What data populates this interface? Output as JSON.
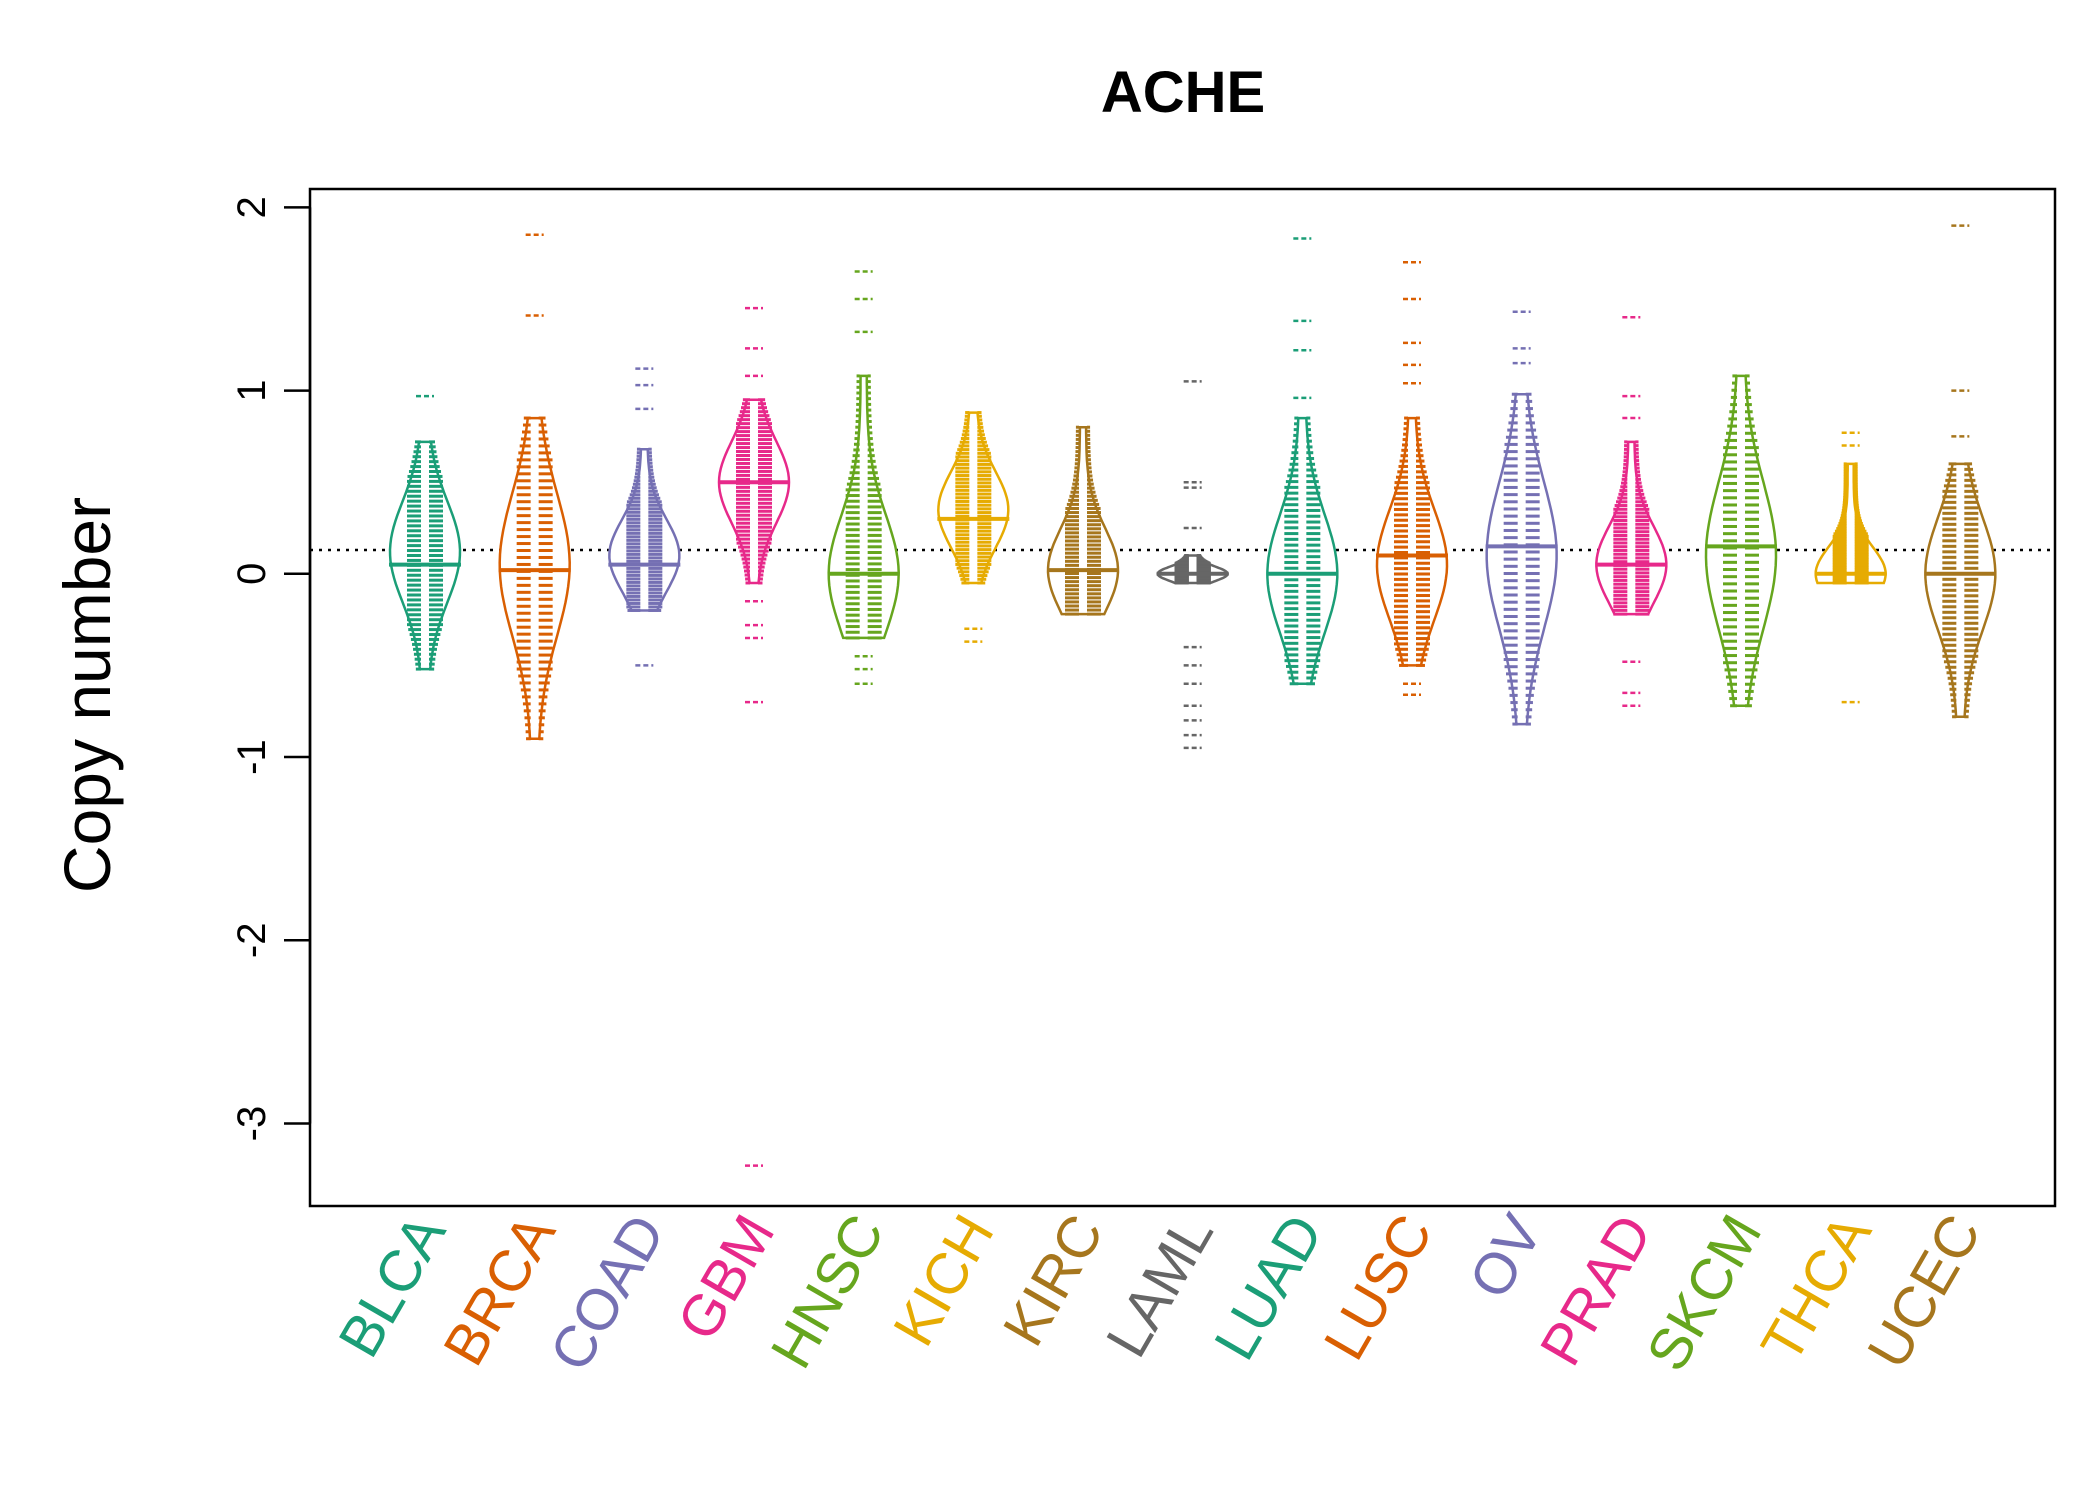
{
  "chart_data": {
    "type": "beanplot",
    "title": "ACHE",
    "ylabel": "Copy number",
    "xlabel": "",
    "ylim": [
      -3.45,
      2.1
    ],
    "y_ticks": [
      2,
      1,
      0,
      -1,
      -2,
      -3
    ],
    "y_tick_labels": [
      "2",
      "1",
      "0",
      "-1",
      "-2",
      "-3"
    ],
    "reference_line": 0.13,
    "grid": false,
    "legend": "none",
    "series": [
      {
        "name": "BLCA",
        "color": "#1B9E77",
        "median": 0.05,
        "range": [
          -0.52,
          0.72
        ],
        "peak": 0.12,
        "outliers": [
          0.97
        ]
      },
      {
        "name": "BRCA",
        "color": "#D95F02",
        "median": 0.02,
        "range": [
          -0.9,
          0.85
        ],
        "peak": 0.05,
        "outliers": [
          1.85,
          1.41
        ]
      },
      {
        "name": "COAD",
        "color": "#7570B3",
        "median": 0.05,
        "range": [
          -0.2,
          0.68
        ],
        "peak": 0.1,
        "outliers": [
          1.12,
          1.03,
          0.9,
          -0.5
        ]
      },
      {
        "name": "GBM",
        "color": "#E7298A",
        "median": 0.5,
        "range": [
          -0.05,
          0.95
        ],
        "peak": 0.5,
        "outliers": [
          1.45,
          1.23,
          1.08,
          -0.15,
          -0.28,
          -0.35,
          -0.7,
          -3.23
        ]
      },
      {
        "name": "HNSC",
        "color": "#66A61E",
        "median": 0.0,
        "range": [
          -0.35,
          1.08
        ],
        "peak": 0.0,
        "outliers": [
          1.65,
          1.5,
          1.32,
          -0.45,
          -0.52,
          -0.6
        ]
      },
      {
        "name": "KICH",
        "color": "#E6AB02",
        "median": 0.3,
        "range": [
          -0.05,
          0.88
        ],
        "peak": 0.35,
        "outliers": [
          -0.3,
          -0.37
        ]
      },
      {
        "name": "KIRC",
        "color": "#A6761D",
        "median": 0.02,
        "range": [
          -0.22,
          0.8
        ],
        "peak": 0.02,
        "outliers": []
      },
      {
        "name": "LAML",
        "color": "#666666",
        "median": 0.0,
        "range": [
          -0.05,
          0.1
        ],
        "peak": 0.0,
        "outliers": [
          1.05,
          0.5,
          0.47,
          0.25,
          -0.4,
          -0.5,
          -0.6,
          -0.72,
          -0.8,
          -0.88,
          -0.95
        ]
      },
      {
        "name": "LUAD",
        "color": "#1B9E77",
        "median": 0.0,
        "range": [
          -0.6,
          0.85
        ],
        "peak": 0.0,
        "outliers": [
          1.83,
          1.38,
          1.22,
          0.96
        ]
      },
      {
        "name": "LUSC",
        "color": "#D95F02",
        "median": 0.1,
        "range": [
          -0.5,
          0.85
        ],
        "peak": 0.05,
        "outliers": [
          1.7,
          1.5,
          1.26,
          1.14,
          1.04,
          -0.6,
          -0.66
        ]
      },
      {
        "name": "OV",
        "color": "#7570B3",
        "median": 0.15,
        "range": [
          -0.82,
          0.98
        ],
        "peak": 0.1,
        "outliers": [
          1.43,
          1.23,
          1.15
        ]
      },
      {
        "name": "PRAD",
        "color": "#E7298A",
        "median": 0.05,
        "range": [
          -0.22,
          0.72
        ],
        "peak": 0.05,
        "outliers": [
          1.4,
          0.97,
          0.85,
          -0.48,
          -0.65,
          -0.72
        ]
      },
      {
        "name": "SKCM",
        "color": "#66A61E",
        "median": 0.15,
        "range": [
          -0.72,
          1.08
        ],
        "peak": 0.1,
        "outliers": []
      },
      {
        "name": "THCA",
        "color": "#E6AB02",
        "median": 0.0,
        "range": [
          -0.05,
          0.6
        ],
        "peak": 0.0,
        "outliers": [
          0.77,
          0.7,
          -0.7
        ]
      },
      {
        "name": "UCEC",
        "color": "#A6761D",
        "median": 0.0,
        "range": [
          -0.78,
          0.6
        ],
        "peak": 0.0,
        "outliers": [
          1.9,
          1.0,
          0.75
        ]
      }
    ]
  }
}
